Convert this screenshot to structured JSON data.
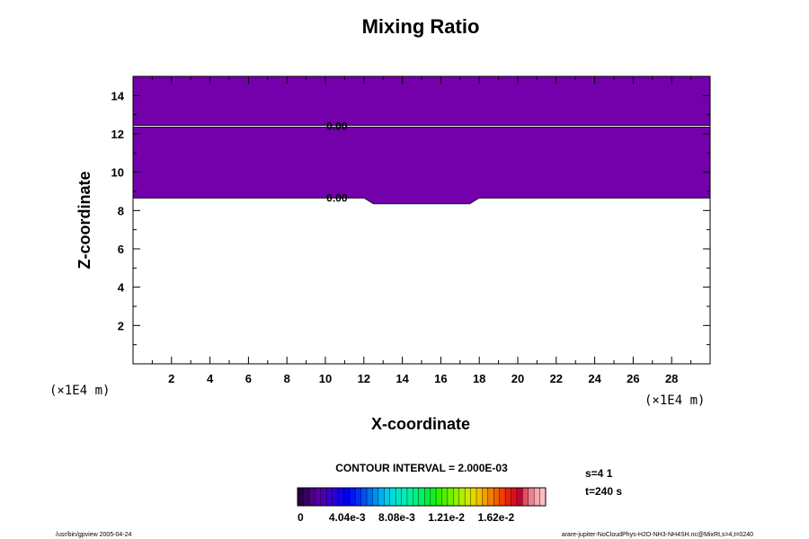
{
  "chart_data": {
    "type": "heatmap",
    "title": "Mixing Ratio",
    "xlabel": "X-coordinate",
    "ylabel": "Z-coordinate",
    "x_unit": "(×1E4 m)",
    "z_unit": "(×1E4 m)",
    "xlim": [
      0,
      30
    ],
    "ylim": [
      0,
      15
    ],
    "xticks": [
      2,
      4,
      6,
      8,
      10,
      12,
      14,
      16,
      18,
      20,
      22,
      24,
      26,
      28
    ],
    "yticks": [
      2,
      4,
      6,
      8,
      10,
      12,
      14
    ],
    "x_minor_step": 1,
    "y_minor_step": 1,
    "filled_region": {
      "value": 0,
      "color": "#7300aa",
      "top_z": 15,
      "lower_boundary": [
        {
          "x": 0,
          "z": 8.65
        },
        {
          "x": 12.0,
          "z": 8.65
        },
        {
          "x": 12.5,
          "z": 8.35
        },
        {
          "x": 17.5,
          "z": 8.35
        },
        {
          "x": 18.0,
          "z": 8.65
        },
        {
          "x": 30,
          "z": 8.65
        }
      ]
    },
    "contour_lines": [
      {
        "z": 12.4,
        "x_start": 0,
        "x_end": 30,
        "color": "#ffffff"
      }
    ],
    "contour_labels": [
      {
        "text": "0.00",
        "x": 10.6,
        "z": 12.4
      },
      {
        "text": "0.00",
        "x": 10.6,
        "z": 8.65
      }
    ],
    "contour_interval_text": "CONTOUR INTERVAL = 2.000E-03",
    "colorbar": {
      "colors": [
        "#2a0040",
        "#3a0060",
        "#4a0080",
        "#5500a0",
        "#4a00b4",
        "#3a00c8",
        "#2a00d8",
        "#1400e6",
        "#0000f0",
        "#0014f0",
        "#0030f0",
        "#0050f0",
        "#0070f0",
        "#0090f0",
        "#00b0f0",
        "#00c8f0",
        "#00dcdc",
        "#00e6c8",
        "#00eeb4",
        "#00f0a0",
        "#00f080",
        "#00f060",
        "#00f040",
        "#10f020",
        "#30f000",
        "#50f000",
        "#70f000",
        "#90f000",
        "#b0f000",
        "#d0e800",
        "#e8d800",
        "#f0c000",
        "#f0a000",
        "#f08000",
        "#f06000",
        "#f04000",
        "#e82010",
        "#d81020",
        "#c80030",
        "#e05060",
        "#ee8090",
        "#f4a8b0",
        "#f6c0c4"
      ],
      "tick_labels": [
        "0",
        "4.04e-3",
        "8.08e-3",
        "1.21e-2",
        "1.62e-2"
      ]
    },
    "info_lines": [
      "s=4 1",
      "t=240 s"
    ],
    "footer_left": "/usr/bin/gpview 2005-04-24",
    "footer_right": "arare-jupiter-NoCloudPhys-H2O-NH3-NH4SH.nc@MixRt,s=4,t=0240"
  }
}
